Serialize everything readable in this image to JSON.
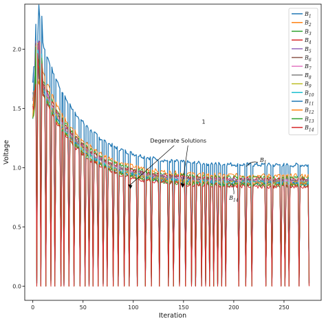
{
  "chart_data": {
    "type": "line",
    "xlabel": "Iteration",
    "ylabel": "Voltage",
    "xlim": [
      -8,
      287
    ],
    "ylim": [
      -0.12,
      2.38
    ],
    "xticks": [
      0,
      50,
      100,
      150,
      200,
      250
    ],
    "yticks": [
      0.0,
      0.5,
      1.0,
      1.5,
      2.0
    ],
    "ytick_labels": [
      "0.0",
      "0.5",
      "1.0",
      "1.5",
      "2.0"
    ],
    "n_points": 276,
    "legend_position": "top-right",
    "grid": false,
    "series": [
      {
        "name": "B1",
        "sub": "1",
        "color": "#1f77b4",
        "start": 1.72,
        "peak": 2.3,
        "plateau": 1.02
      },
      {
        "name": "B2",
        "sub": "2",
        "color": "#ff7f0e",
        "start": 1.6,
        "peak": 2.05,
        "plateau": 0.93
      },
      {
        "name": "B3",
        "sub": "3",
        "color": "#2ca02c",
        "start": 1.35,
        "peak": 2.0,
        "plateau": 0.91
      },
      {
        "name": "B4",
        "sub": "4",
        "color": "#d62728",
        "start": 1.55,
        "peak": 1.98,
        "plateau": 0.9
      },
      {
        "name": "B5",
        "sub": "5",
        "color": "#9467bd",
        "start": 1.58,
        "peak": 1.96,
        "plateau": 0.89
      },
      {
        "name": "B6",
        "sub": "6",
        "color": "#8c564b",
        "start": 1.62,
        "peak": 1.95,
        "plateau": 0.89
      },
      {
        "name": "B7",
        "sub": "7",
        "color": "#e377c2",
        "start": 1.5,
        "peak": 1.94,
        "plateau": 0.88
      },
      {
        "name": "B8",
        "sub": "8",
        "color": "#7f7f7f",
        "start": 1.48,
        "peak": 1.93,
        "plateau": 0.88
      },
      {
        "name": "B9",
        "sub": "9",
        "color": "#bcbd22",
        "start": 1.45,
        "peak": 1.92,
        "plateau": 0.87
      },
      {
        "name": "B10",
        "sub": "10",
        "color": "#17becf",
        "start": 1.52,
        "peak": 1.91,
        "plateau": 0.87
      },
      {
        "name": "B11",
        "sub": "11",
        "color": "#1f77b4",
        "start": 1.57,
        "peak": 1.9,
        "plateau": 0.86
      },
      {
        "name": "B12",
        "sub": "12",
        "color": "#ff7f0e",
        "start": 1.44,
        "peak": 1.89,
        "plateau": 0.86
      },
      {
        "name": "B13",
        "sub": "13",
        "color": "#2ca02c",
        "start": 1.4,
        "peak": 1.88,
        "plateau": 0.85
      },
      {
        "name": "B14",
        "sub": "14",
        "color": "#d62728",
        "start": 1.42,
        "peak": 1.87,
        "plateau": 0.84
      }
    ],
    "degenerate_iterations": [
      4,
      8,
      13,
      18,
      22,
      28,
      31,
      36,
      41,
      47,
      52,
      56,
      60,
      65,
      70,
      74,
      80,
      85,
      91,
      96,
      104,
      112,
      118,
      126,
      135,
      140,
      146,
      152,
      158,
      162,
      168,
      172,
      176,
      180,
      184,
      188,
      192,
      205,
      212,
      218,
      232,
      238,
      247,
      251,
      255,
      265,
      275
    ],
    "annotations": [
      {
        "text": "Degenrate Solutions",
        "x": 153,
        "y": 1.21
      },
      {
        "text": "1",
        "x": 170,
        "y": 1.37
      },
      {
        "text": "B",
        "sub": "1",
        "x": 226,
        "y": 1.05
      },
      {
        "text": "B",
        "sub": "14",
        "x": 200,
        "y": 0.73
      }
    ]
  }
}
